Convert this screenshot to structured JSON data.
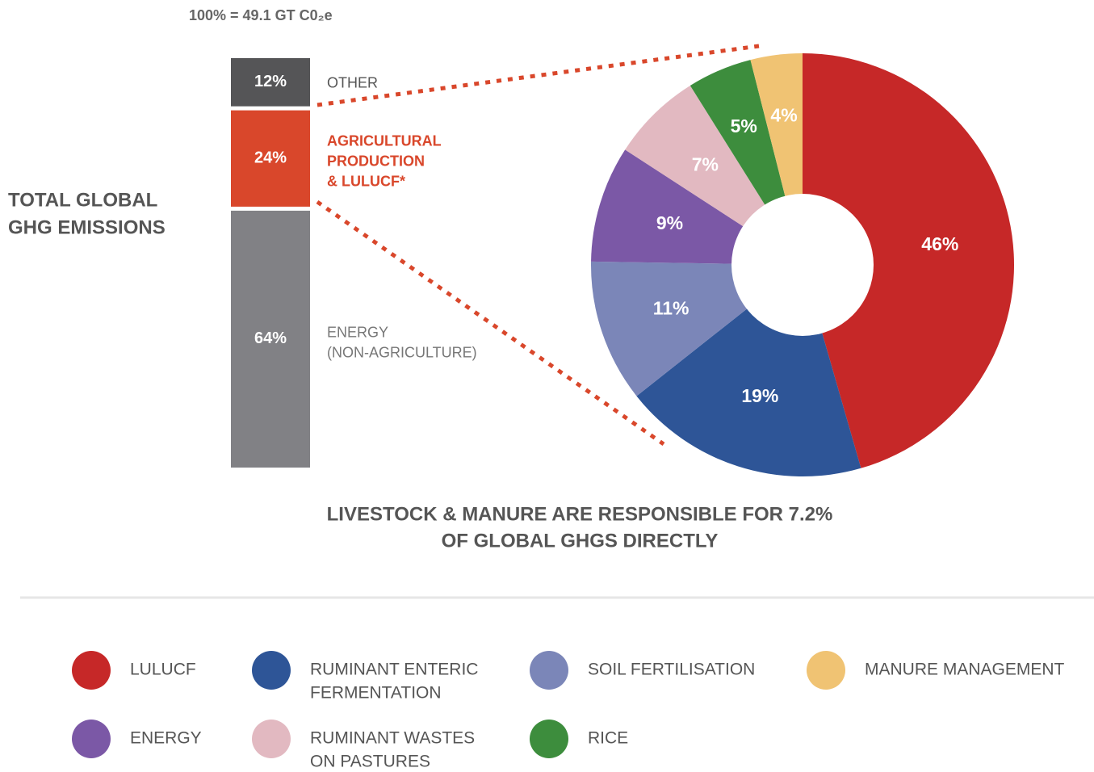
{
  "chart_data": [
    {
      "type": "stacked-bar",
      "title": "100% = 49.1 GT C0₂e",
      "label_lines": [
        "TOTAL GLOBAL",
        "GHG EMISSIONS"
      ],
      "categories": [
        [
          "OTHER"
        ],
        [
          "AGRICULTURAL",
          "PRODUCTION",
          "& LULUCF*"
        ],
        [
          "ENERGY",
          "(NON-AGRICULTURE)"
        ]
      ],
      "values": [
        12,
        24,
        64
      ],
      "value_labels": [
        "12%",
        "24%",
        "64%"
      ],
      "colors": [
        "#555557",
        "#d9472b",
        "#818185"
      ],
      "label_colors": [
        "#555555",
        "#d9472b",
        "#777777"
      ]
    },
    {
      "type": "donut",
      "annotation_lines": [
        "LIVESTOCK & MANURE ARE RESPONSIBLE FOR 7.2%",
        "OF GLOBAL GHGS DIRECTLY"
      ],
      "categories": [
        [
          "LULUCF"
        ],
        [
          "RUMINANT ENTERIC",
          "FERMENTATION"
        ],
        [
          "SOIL FERTILISATION"
        ],
        [
          "ENERGY"
        ],
        [
          "RUMINANT WASTES",
          "ON PASTURES"
        ],
        [
          "RICE"
        ],
        [
          "MANURE MANAGEMENT"
        ]
      ],
      "values": [
        46,
        19,
        11,
        9,
        7,
        5,
        4
      ],
      "value_labels": [
        "46%",
        "19%",
        "11%",
        "9%",
        "7%",
        "5%",
        "4%"
      ],
      "colors": [
        "#c62828",
        "#2e5597",
        "#7b86b8",
        "#7b58a6",
        "#e2b9c1",
        "#3d8d3d",
        "#f0c373"
      ]
    }
  ]
}
